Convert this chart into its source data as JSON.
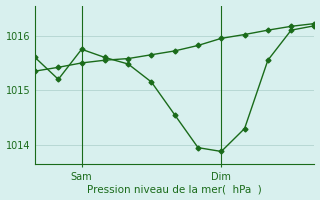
{
  "background_color": "#d8f0ee",
  "grid_color": "#b8d8d4",
  "line_color": "#1a6b1a",
  "xlabel": "Pression niveau de la mer(  hPa  )",
  "xlabel_fontsize": 7.5,
  "ylim": [
    1013.65,
    1016.55
  ],
  "yticks": [
    1014,
    1015,
    1016
  ],
  "ytick_fontsize": 7,
  "xtick_fontsize": 7,
  "xlim": [
    0,
    12
  ],
  "xtick_positions": [
    2,
    8
  ],
  "xtick_labels": [
    "Sam",
    "Dim"
  ],
  "vline_positions": [
    2,
    8
  ],
  "series1_x": [
    0,
    1,
    2,
    3,
    4,
    5,
    6,
    7,
    8,
    9,
    10,
    11,
    12
  ],
  "series1_y": [
    1015.6,
    1015.2,
    1015.75,
    1015.6,
    1015.48,
    1015.15,
    1014.55,
    1013.95,
    1013.88,
    1014.3,
    1015.55,
    1016.1,
    1016.18
  ],
  "series2_x": [
    0,
    1,
    2,
    3,
    4,
    5,
    6,
    7,
    8,
    9,
    10,
    11,
    12
  ],
  "series2_y": [
    1015.35,
    1015.42,
    1015.5,
    1015.55,
    1015.58,
    1015.65,
    1015.72,
    1015.82,
    1015.95,
    1016.02,
    1016.1,
    1016.17,
    1016.22
  ],
  "marker": "D",
  "markersize": 2.5,
  "linewidth": 1.0
}
